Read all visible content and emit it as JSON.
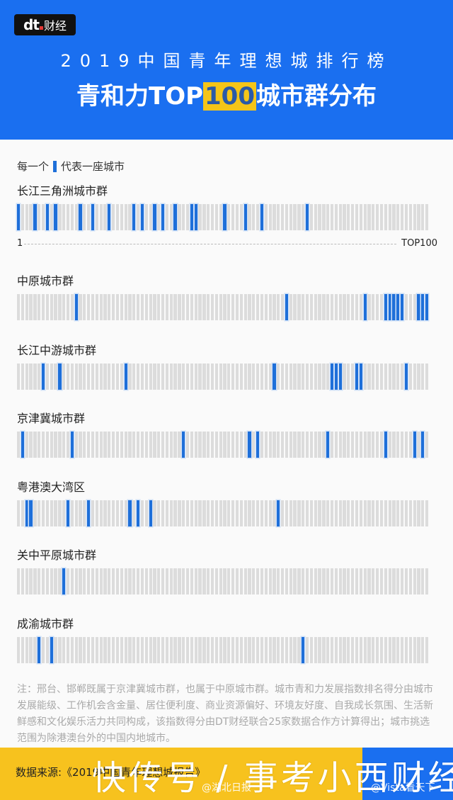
{
  "header": {
    "logo_mark": "dt",
    "logo_text": "财经",
    "subtitle": "2019中国青年理想城排行榜",
    "title_pre": "青和力TOP",
    "title_hl": "100",
    "title_post": "城市群分布"
  },
  "legend": {
    "pre": "每一个",
    "post": "代表一座城市"
  },
  "axis": {
    "start": "1",
    "end": "TOP100"
  },
  "colors": {
    "header": "#1a6ff0",
    "highlight": "#f5c518",
    "bar_on": "#1e6fd9",
    "bar_off": "#dcdcdc",
    "footer": "#f7c21e"
  },
  "chart_data": {
    "type": "strip",
    "title": "青和力TOP100城市群分布",
    "subtitle": "2019中国青年理想城排行榜",
    "x_range": [
      1,
      100
    ],
    "legend": "每一个▌代表一座城市",
    "series": [
      {
        "name": "长江三角洲城市群",
        "ranks": [
          1,
          5,
          8,
          10,
          16,
          19,
          23,
          29,
          31,
          34,
          36,
          39,
          43,
          44,
          51,
          56,
          60,
          71
        ]
      },
      {
        "name": "中原城市群",
        "ranks": [
          15,
          66,
          85,
          90,
          91,
          92,
          93,
          94,
          98,
          99,
          100
        ]
      },
      {
        "name": "长江中游城市群",
        "ranks": [
          7,
          11,
          27,
          63,
          77,
          78,
          79,
          83,
          84,
          95
        ]
      },
      {
        "name": "京津冀城市群",
        "ranks": [
          2,
          14,
          41,
          57,
          59,
          76,
          90,
          97,
          99
        ]
      },
      {
        "name": "粤港澳大湾区",
        "ranks": [
          3,
          4,
          13,
          18,
          28,
          30,
          33,
          64
        ]
      },
      {
        "name": "关中平原城市群",
        "ranks": [
          12
        ]
      },
      {
        "name": "成渝城市群",
        "ranks": [
          6,
          9,
          70
        ]
      }
    ]
  },
  "note": "注：邢台、邯郸既属于京津冀城市群，也属于中原城市群。城市青和力发展指数排名得分由城市发展能级、工作机会含金量、居住便利度、商业资源偏好、环境友好度、自我成长氛围、生活新鲜感和文化娱乐活力共同构成，该指数得分由DT财经联合25家数据合作方计算得出；城市挑选范围为除港澳台外的中国内地城市。",
  "footer": {
    "source": "数据来源:《2019中国青年理想城报告》",
    "watermark_left": "@湖北日报",
    "watermark_right": "@Vista看天下",
    "overlay": "快传号 / 事考小西财经"
  }
}
